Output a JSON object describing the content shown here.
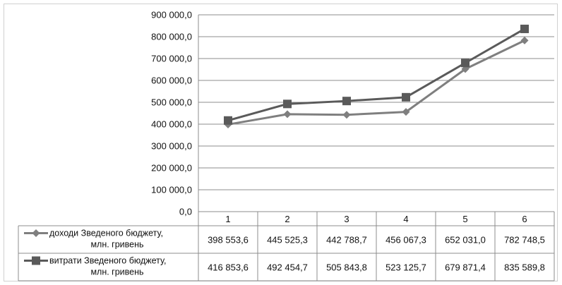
{
  "chart_data": {
    "type": "line",
    "title": "",
    "xlabel": "",
    "ylabel": "",
    "categories": [
      "1",
      "2",
      "3",
      "4",
      "5",
      "6"
    ],
    "ylim": [
      0,
      900000
    ],
    "yticks": [
      "0,0",
      "100 000,0",
      "200 000,0",
      "300 000,0",
      "400 000,0",
      "500 000,0",
      "600 000,0",
      "700 000,0",
      "800 000,0",
      "900 000,0"
    ],
    "grid": true,
    "legend": "data-table-left",
    "series": [
      {
        "name_line1": "доходи Зведеного бюджету,",
        "name_line2": "млн. гривень",
        "marker": "diamond",
        "color": "#7f7f7f",
        "values": [
          398553.6,
          445525.3,
          442788.7,
          456067.3,
          652031.0,
          782748.5
        ],
        "labels": [
          "398 553,6",
          "445 525,3",
          "442 788,7",
          "456 067,3",
          "652 031,0",
          "782 748,5"
        ]
      },
      {
        "name_line1": "витрати Зведеного бюджету,",
        "name_line2": "млн. гривень",
        "marker": "square",
        "color": "#5a5a5a",
        "values": [
          416853.6,
          492454.7,
          505843.8,
          523125.7,
          679871.4,
          835589.8
        ],
        "labels": [
          "416 853,6",
          "492 454,7",
          "505 843,8",
          "523 125,7",
          "679 871,4",
          "835 589,8"
        ]
      }
    ]
  }
}
